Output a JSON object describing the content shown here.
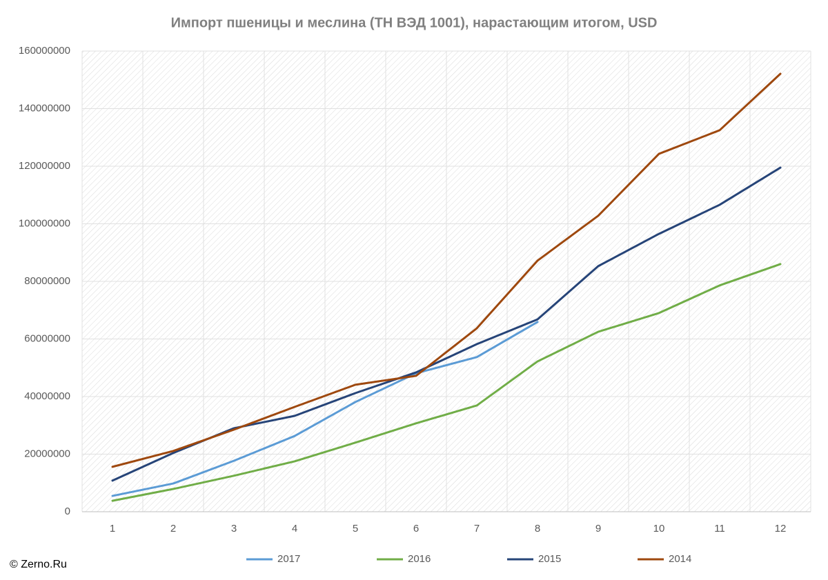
{
  "chart_data": {
    "type": "line",
    "title": "Импорт пшеницы и меслина (ТН ВЭД 1001), нарастающим итогом, USD",
    "categories": [
      "1",
      "2",
      "3",
      "4",
      "5",
      "6",
      "7",
      "8",
      "9",
      "10",
      "11",
      "12"
    ],
    "series": [
      {
        "name": "2017",
        "color": "#5b9bd5",
        "values": [
          5500000,
          9800000,
          17700000,
          26300000,
          38100000,
          48100000,
          53700000,
          65900000,
          null,
          null,
          null,
          null
        ]
      },
      {
        "name": "2016",
        "color": "#70ad47",
        "values": [
          3800000,
          7900000,
          12500000,
          17500000,
          24000000,
          30700000,
          36900000,
          52200000,
          62500000,
          69000000,
          78600000,
          86000000
        ]
      },
      {
        "name": "2015",
        "color": "#264478",
        "values": [
          10800000,
          20400000,
          29000000,
          33300000,
          41200000,
          48400000,
          58200000,
          66800000,
          85300000,
          96500000,
          106600000,
          119500000
        ]
      },
      {
        "name": "2014",
        "color": "#9e480e",
        "values": [
          15600000,
          21100000,
          28500000,
          36400000,
          44100000,
          47200000,
          63700000,
          87200000,
          102800000,
          124300000,
          132500000,
          152100000
        ]
      }
    ],
    "ylim": [
      0,
      160000000
    ],
    "yticks": [
      0,
      20000000,
      40000000,
      60000000,
      80000000,
      100000000,
      120000000,
      140000000,
      160000000
    ],
    "grid": true,
    "legend": "bottom",
    "credit": "© Zerno.Ru"
  }
}
